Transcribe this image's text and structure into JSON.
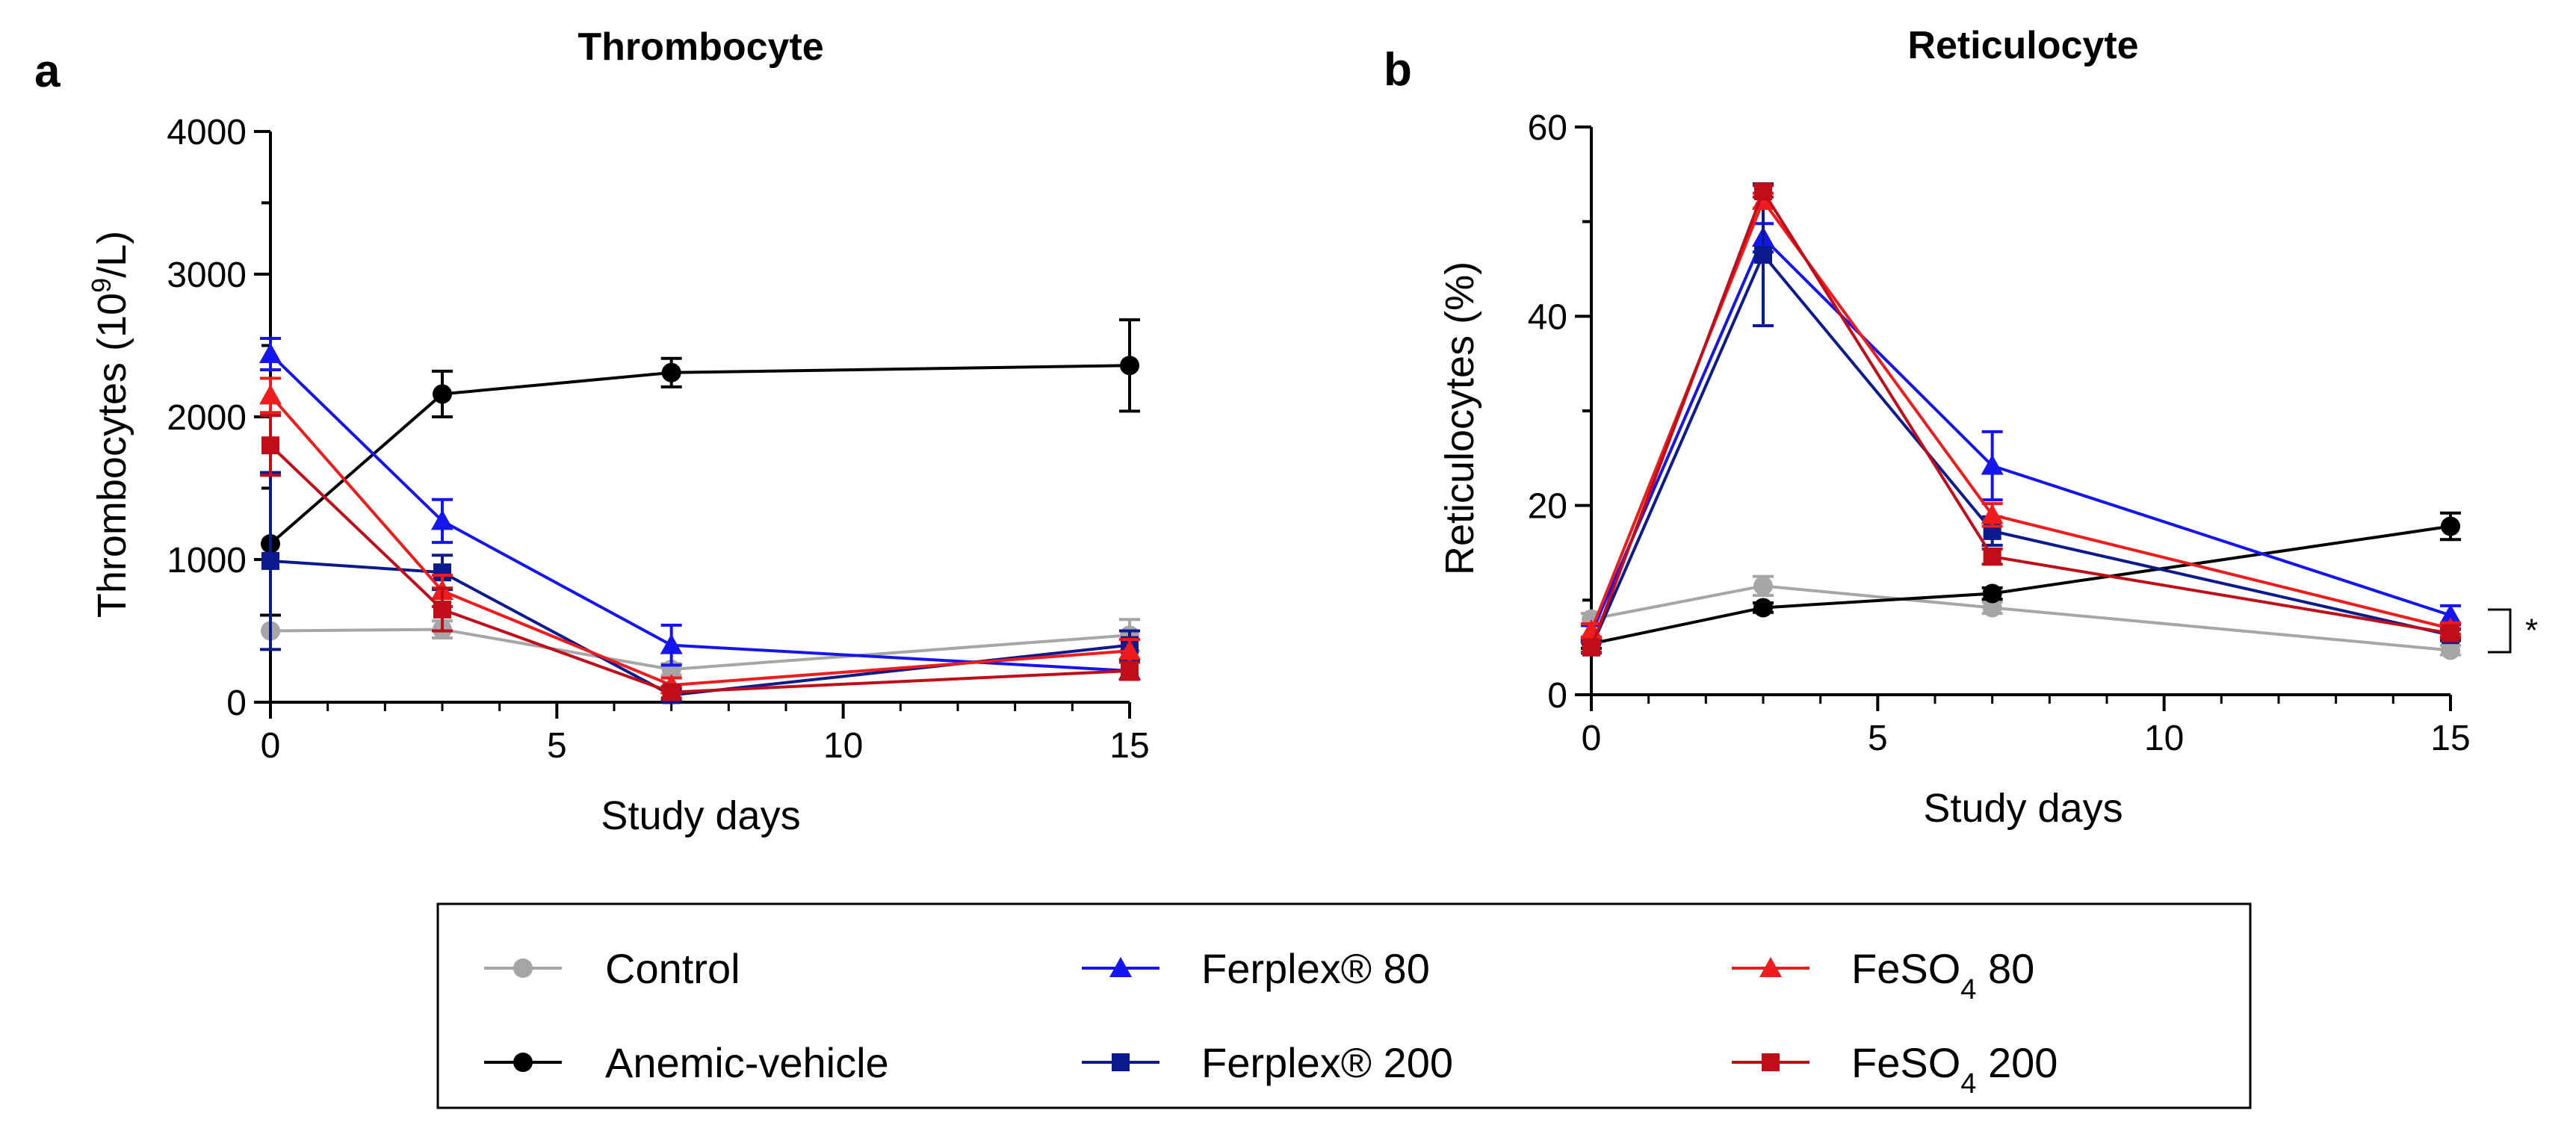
{
  "figure": {
    "legend": [
      {
        "key": "control",
        "label": "Control",
        "color": "#a6a6a8",
        "marker": "circle"
      },
      {
        "key": "anemic",
        "label": "Anemic-vehicle",
        "color": "#000000",
        "marker": "circle"
      },
      {
        "key": "ferplex80",
        "label": "Ferplex® 80",
        "color": "#1515f0",
        "marker": "triangle"
      },
      {
        "key": "ferplex200",
        "label": "Ferplex® 200",
        "color": "#0b1a8c",
        "marker": "square"
      },
      {
        "key": "feso480",
        "label": "FeSO4 80",
        "label_main": "FeSO",
        "label_sub": "4",
        "label_rest": " 80",
        "color": "#ee1c1c",
        "marker": "triangle"
      },
      {
        "key": "feso4200",
        "label": "FeSO4 200",
        "label_main": "FeSO",
        "label_sub": "4",
        "label_rest": " 200",
        "color": "#c00d1a",
        "marker": "square"
      }
    ]
  },
  "chart_data": [
    {
      "type": "line",
      "panel": "a",
      "title": "Thrombocyte",
      "xlabel": "Study days",
      "ylabel": "Thrombocytes (10^9/L)",
      "ylabel_parts": {
        "main": "Thrombocytes (10",
        "sup": "9",
        "rest": "/L)"
      },
      "x": [
        0,
        3,
        7,
        15
      ],
      "xlim": [
        0,
        15
      ],
      "ylim": [
        0,
        4000
      ],
      "xticks": [
        0,
        5,
        10,
        15
      ],
      "yticks": [
        0,
        1000,
        2000,
        3000,
        4000
      ],
      "baseline_dotted": 0,
      "series": [
        {
          "key": "control",
          "name": "Control",
          "values": [
            500,
            510,
            230,
            470
          ],
          "errors": [
            0,
            60,
            40,
            110
          ]
        },
        {
          "key": "anemic",
          "name": "Anemic-vehicle",
          "values": [
            1110,
            2160,
            2310,
            2360
          ],
          "errors": [
            500,
            160,
            100,
            320
          ]
        },
        {
          "key": "ferplex80",
          "name": "Ferplex® 80",
          "values": [
            2440,
            1270,
            400,
            220
          ],
          "errors": [
            110,
            150,
            140,
            60
          ]
        },
        {
          "key": "ferplex200",
          "name": "Ferplex® 200",
          "values": [
            990,
            910,
            50,
            400
          ],
          "errors": [
            620,
            120,
            40,
            100
          ]
        },
        {
          "key": "feso480",
          "name": "FeSO4 80",
          "values": [
            2150,
            780,
            120,
            360
          ],
          "errors": [
            120,
            110,
            50,
            80
          ]
        },
        {
          "key": "feso4200",
          "name": "FeSO4 200",
          "values": [
            1800,
            650,
            70,
            220
          ],
          "errors": [
            210,
            150,
            40,
            60
          ]
        }
      ]
    },
    {
      "type": "line",
      "panel": "b",
      "title": "Reticulocyte",
      "xlabel": "Study days",
      "ylabel": "Reticulocytes (%)",
      "x": [
        0,
        3,
        7,
        15
      ],
      "xlim": [
        0,
        15
      ],
      "ylim": [
        0,
        60
      ],
      "xticks": [
        0,
        5,
        10,
        15
      ],
      "yticks": [
        0,
        20,
        40,
        60
      ],
      "baseline_dotted": 0,
      "significance": {
        "label": "*",
        "y_range": [
          4.5,
          9
        ]
      },
      "series": [
        {
          "key": "control",
          "name": "Control",
          "values": [
            8,
            11.5,
            9.2,
            4.7
          ],
          "errors": [
            0.6,
            1.0,
            0.6,
            0.5
          ]
        },
        {
          "key": "anemic",
          "name": "Anemic-vehicle",
          "values": [
            5.4,
            9.2,
            10.7,
            17.8
          ],
          "errors": [
            0.5,
            0.5,
            0.6,
            1.4
          ]
        },
        {
          "key": "ferplex80",
          "name": "Ferplex® 80",
          "values": [
            6.5,
            48.3,
            24.2,
            8.4
          ],
          "errors": [
            0.8,
            1.5,
            3.6,
            1.0
          ]
        },
        {
          "key": "ferplex200",
          "name": "Ferplex® 200",
          "values": [
            5.0,
            46.5,
            17.3,
            6.3
          ],
          "errors": [
            0.6,
            7.5,
            1.5,
            0.6
          ]
        },
        {
          "key": "feso480",
          "name": "FeSO4 80",
          "values": [
            6.8,
            52.2,
            19.0,
            7.0
          ],
          "errors": [
            0.7,
            0.8,
            1.2,
            0.6
          ]
        },
        {
          "key": "feso4200",
          "name": "FeSO4 200",
          "values": [
            5.0,
            53.2,
            14.6,
            6.5
          ],
          "errors": [
            0.5,
            0.6,
            0.8,
            0.5
          ]
        }
      ]
    }
  ]
}
